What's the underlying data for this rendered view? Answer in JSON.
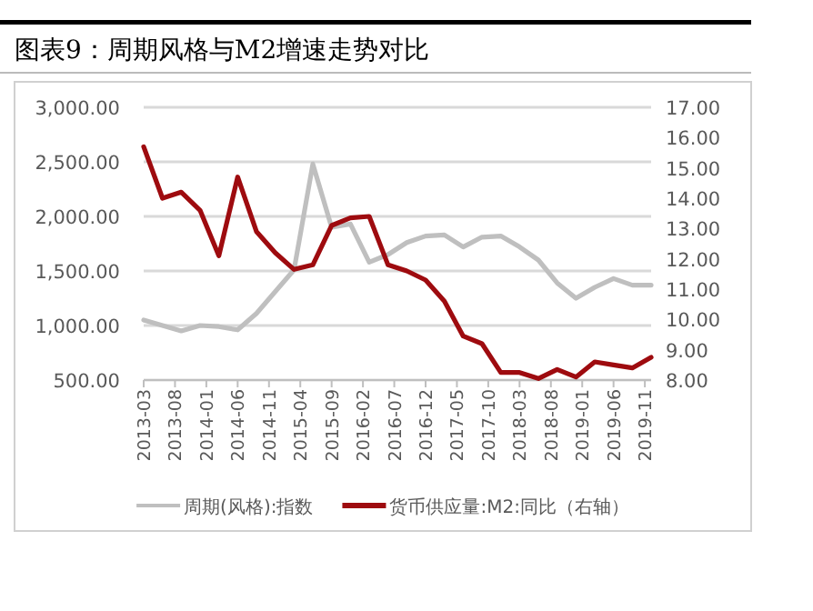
{
  "chart_data": {
    "type": "line",
    "title": "图表9：周期风格与M2增速走势对比",
    "x": [
      "2013-03",
      "2013-06",
      "2013-09",
      "2013-12",
      "2014-03",
      "2014-06",
      "2014-09",
      "2014-12",
      "2015-03",
      "2015-06",
      "2015-09",
      "2015-12",
      "2016-03",
      "2016-06",
      "2016-09",
      "2016-12",
      "2017-03",
      "2017-06",
      "2017-09",
      "2017-12",
      "2018-03",
      "2018-06",
      "2018-09",
      "2018-12",
      "2019-03",
      "2019-06",
      "2019-09",
      "2019-12"
    ],
    "series": [
      {
        "name": "周期(风格):指数",
        "color": "#bfbfbf",
        "values": [
          1050,
          1000,
          950,
          1000,
          990,
          960,
          1110,
          1310,
          1510,
          2480,
          1900,
          1930,
          1580,
          1650,
          1760,
          1820,
          1830,
          1720,
          1810,
          1820,
          1720,
          1600,
          1390,
          1250,
          1350,
          1430,
          1370,
          1370
        ]
      },
      {
        "name": "货币供应量:M2:同比（右轴）",
        "color": "#9e0b0f",
        "axis": "y2",
        "values": [
          15.7,
          14.0,
          14.2,
          13.6,
          12.1,
          14.7,
          12.9,
          12.2,
          11.65,
          11.8,
          13.1,
          13.35,
          13.4,
          11.8,
          11.6,
          11.3,
          10.6,
          9.45,
          9.2,
          8.25,
          8.25,
          8.05,
          8.35,
          8.1,
          8.6,
          8.5,
          8.4,
          8.75
        ]
      }
    ],
    "xlim": [
      "2013-03",
      "2019-12"
    ],
    "xticks": [
      "2013-03",
      "2013-08",
      "2014-01",
      "2014-06",
      "2014-11",
      "2015-04",
      "2015-09",
      "2016-02",
      "2016-07",
      "2016-12",
      "2017-05",
      "2017-10",
      "2018-03",
      "2018-08",
      "2019-01",
      "2019-06",
      "2019-11"
    ],
    "ylim": [
      500,
      3000
    ],
    "yticks": [
      {
        "value": 500,
        "label": "500.00"
      },
      {
        "value": 1000,
        "label": "1,000.00"
      },
      {
        "value": 1500,
        "label": "1,500.00"
      },
      {
        "value": 2000,
        "label": "2,000.00"
      },
      {
        "value": 2500,
        "label": "2,500.00"
      },
      {
        "value": 3000,
        "label": "3,000.00"
      }
    ],
    "y2lim": [
      8,
      17
    ],
    "y2ticks": [
      {
        "value": 8,
        "label": "8.00"
      },
      {
        "value": 9,
        "label": "9.00"
      },
      {
        "value": 10,
        "label": "10.00"
      },
      {
        "value": 11,
        "label": "11.00"
      },
      {
        "value": 12,
        "label": "12.00"
      },
      {
        "value": 13,
        "label": "13.00"
      },
      {
        "value": 14,
        "label": "14.00"
      },
      {
        "value": 15,
        "label": "15.00"
      },
      {
        "value": 16,
        "label": "16.00"
      },
      {
        "value": 17,
        "label": "17.00"
      }
    ],
    "grid": "y",
    "legend": "bottom",
    "line_style": "solid",
    "marker": "none"
  }
}
